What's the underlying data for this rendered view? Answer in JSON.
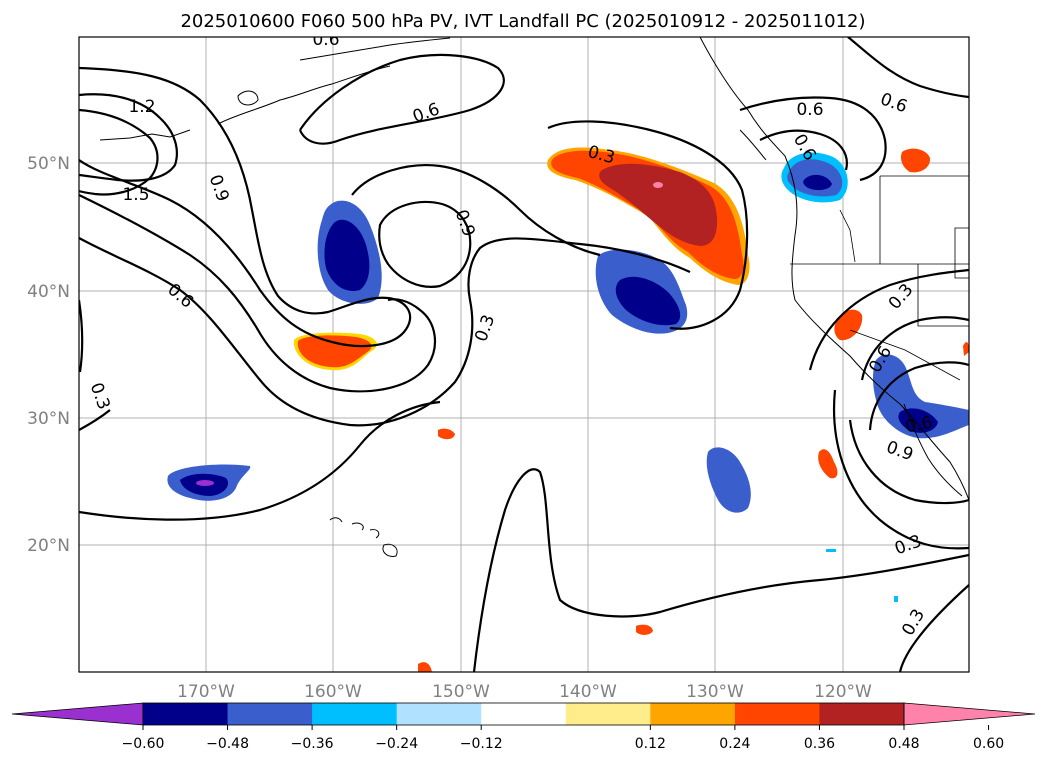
{
  "title": "2025010600 F060 500 hPa PV, IVT Landfall PC (2025010912 - 2025011012)",
  "lon_ticks": [
    "170°W",
    "160°W",
    "150°W",
    "140°W",
    "130°W",
    "120°W"
  ],
  "lat_ticks": [
    "50°N",
    "40°N",
    "30°N",
    "20°N"
  ],
  "contour_labels": [
    "1.2",
    "1.5",
    "0.9",
    "0.6",
    "0.6",
    "0.6",
    "0.6",
    "0.3",
    "0.9",
    "0.3",
    "0.3",
    "0.6",
    "0.3",
    "0.6",
    "0.9",
    "0.3",
    "0.3",
    "0.6",
    "0.6"
  ],
  "colorbar": {
    "ticks": [
      "−0.60",
      "−0.48",
      "−0.36",
      "−0.24",
      "−0.12",
      "0.12",
      "0.24",
      "0.36",
      "0.48",
      "0.60"
    ],
    "colors": [
      "#9b30d0",
      "#00008b",
      "#3a5fcd",
      "#00bfff",
      "#b0e2ff",
      "#ffffff",
      "#ffec8b",
      "#ffa500",
      "#ff4500",
      "#b22222",
      "#ff82ab"
    ]
  }
}
